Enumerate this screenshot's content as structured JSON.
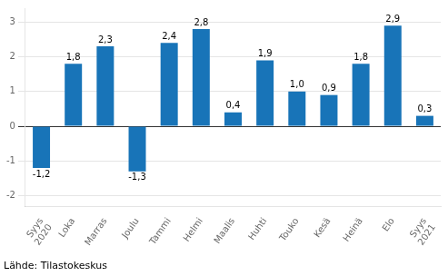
{
  "chart_data": {
    "type": "bar",
    "categories": [
      "Syys\n2020",
      "Loka",
      "Marras",
      "Joulu",
      "Tammi",
      "Helmi",
      "Maalis",
      "Huhti",
      "Touko",
      "Kesä",
      "Heinä",
      "Elo",
      "Syys\n2021"
    ],
    "values": [
      -1.2,
      1.8,
      2.3,
      -1.3,
      2.4,
      2.8,
      0.4,
      1.9,
      1.0,
      0.9,
      1.8,
      2.9,
      0.3
    ],
    "value_labels": [
      "-1,2",
      "1,8",
      "2,3",
      "-1,3",
      "2,4",
      "2,8",
      "0,4",
      "1,9",
      "1,0",
      "0,9",
      "1,8",
      "2,9",
      "0,3"
    ],
    "data_labels": true,
    "color": "#1874b8",
    "ylim": [
      -2.3,
      3.4
    ],
    "yticks": [
      -2,
      -1,
      0,
      1,
      2,
      3
    ],
    "grid": true,
    "annotations": [
      "Lähde: Tilastokeskus"
    ]
  }
}
